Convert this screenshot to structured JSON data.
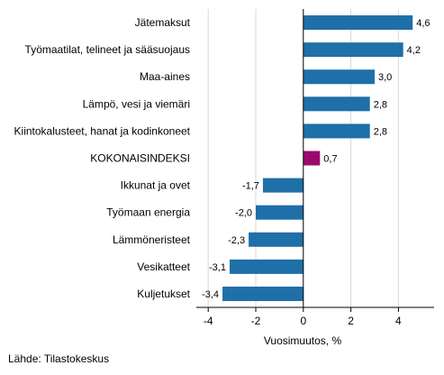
{
  "chart_data": {
    "type": "bar",
    "orientation": "horizontal",
    "categories": [
      "Jätemaksut",
      "Työmaatilat, telineet ja sääsuojaus",
      "Maa-aines",
      "Lämpö, vesi ja viemäri",
      "Kiintokalusteet, hanat ja kodinkoneet",
      "KOKONAISINDEKSI",
      "Ikkunat ja ovet",
      "Työmaan energia",
      "Lämmöneristeet",
      "Vesikatteet",
      "Kuljetukset"
    ],
    "values": [
      4.6,
      4.2,
      3.0,
      2.8,
      2.8,
      0.7,
      -1.7,
      -2.0,
      -2.3,
      -3.1,
      -3.4
    ],
    "value_labels": [
      "4,6",
      "4,2",
      "3,0",
      "2,8",
      "2,8",
      "0,7",
      "-1,7",
      "-2,0",
      "-2,3",
      "-3,1",
      "-3,4"
    ],
    "highlight_category": "KOKONAISINDEKSI",
    "xlabel": "Vuosimuutos, %",
    "xlim": [
      -4.5,
      5.5
    ],
    "xticks": [
      -4,
      -2,
      0,
      2,
      4
    ],
    "xtick_labels": [
      "-4",
      "-2",
      "0",
      "2",
      "4"
    ],
    "grid": "vertical",
    "legend": "none",
    "colors": {
      "bar": "#1f6fa8",
      "highlight": "#9b0a6b",
      "grid": "#d9d9d9",
      "axis": "#000000"
    }
  },
  "source": "Lähde: Tilastokeskus"
}
